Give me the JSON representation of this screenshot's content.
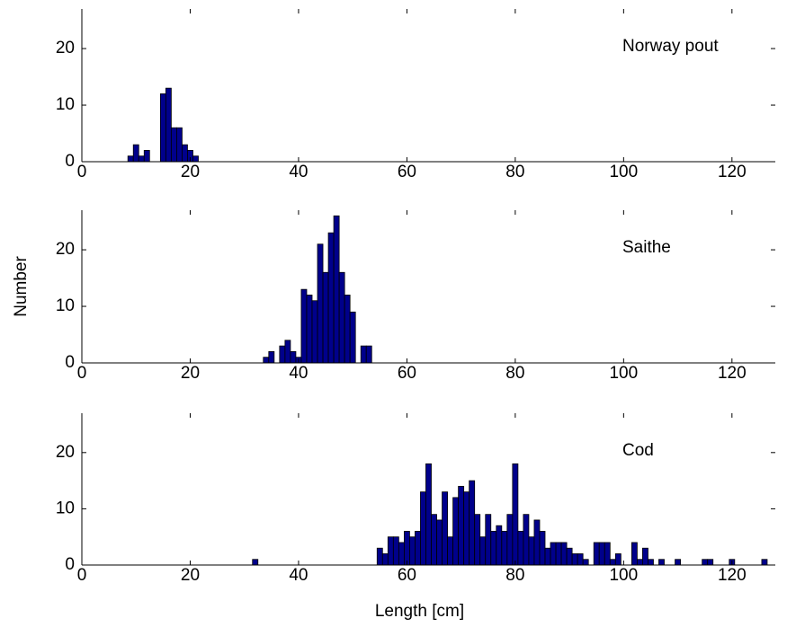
{
  "chart_data": [
    {
      "type": "bar",
      "annotation": "Norway pout",
      "color": "#00008b",
      "x": [
        9,
        10,
        11,
        12,
        15,
        16,
        17,
        18,
        19,
        20,
        21
      ],
      "values": [
        1,
        3,
        1,
        2,
        12,
        13,
        6,
        6,
        3,
        2,
        1
      ],
      "xlim": [
        0,
        128
      ],
      "ylim": [
        0,
        27
      ],
      "xticks": [
        0,
        20,
        40,
        60,
        80,
        100,
        120
      ],
      "yticks": [
        0,
        10,
        20
      ]
    },
    {
      "type": "bar",
      "annotation": "Saithe",
      "ylabel": "Number",
      "color": "#00008b",
      "x": [
        34,
        35,
        37,
        38,
        39,
        40,
        41,
        42,
        43,
        44,
        45,
        46,
        47,
        48,
        49,
        50,
        52,
        53
      ],
      "values": [
        1,
        2,
        3,
        4,
        2,
        1,
        13,
        12,
        11,
        21,
        16,
        23,
        26,
        16,
        12,
        9,
        3,
        3
      ],
      "xlim": [
        0,
        128
      ],
      "ylim": [
        0,
        27
      ],
      "xticks": [
        0,
        20,
        40,
        60,
        80,
        100,
        120
      ],
      "yticks": [
        0,
        10,
        20
      ]
    },
    {
      "type": "bar",
      "annotation": "Cod",
      "xlabel": "Length [cm]",
      "color": "#00008b",
      "x": [
        32,
        55,
        56,
        57,
        58,
        59,
        60,
        61,
        62,
        63,
        64,
        65,
        66,
        67,
        68,
        69,
        70,
        71,
        72,
        73,
        74,
        75,
        76,
        77,
        78,
        79,
        80,
        81,
        82,
        83,
        84,
        85,
        86,
        87,
        88,
        89,
        90,
        91,
        92,
        93,
        95,
        96,
        97,
        98,
        99,
        102,
        103,
        104,
        105,
        107,
        110,
        115,
        116,
        120,
        126
      ],
      "values": [
        1,
        3,
        2,
        5,
        5,
        4,
        6,
        5,
        6,
        13,
        18,
        9,
        8,
        13,
        5,
        12,
        14,
        13,
        15,
        9,
        5,
        9,
        6,
        7,
        6,
        9,
        18,
        6,
        9,
        5,
        8,
        6,
        3,
        4,
        4,
        4,
        3,
        2,
        2,
        1,
        4,
        4,
        4,
        1,
        2,
        4,
        1,
        3,
        1,
        1,
        1,
        1,
        1,
        1,
        1
      ],
      "xlim": [
        0,
        128
      ],
      "ylim": [
        0,
        27
      ],
      "xticks": [
        0,
        20,
        40,
        60,
        80,
        100,
        120
      ],
      "yticks": [
        0,
        10,
        20
      ]
    }
  ]
}
